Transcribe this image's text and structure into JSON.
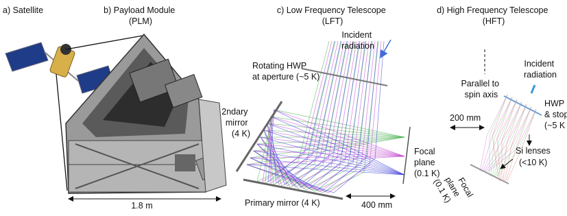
{
  "panels": [
    {
      "title": [
        "a) Satellite"
      ]
    },
    {
      "title": [
        "b) Payload Module",
        "(PLM)"
      ],
      "dimension": "1.8 m"
    },
    {
      "title": [
        "c) Low Frequency Telescope",
        "(LFT)"
      ],
      "incident": [
        "Incident",
        "radiation"
      ],
      "hwp": [
        "Rotating HWP",
        "at aperture (~5 K)"
      ],
      "secondary": [
        "2ndary",
        "mirror",
        "(4 K)"
      ],
      "focal": [
        "Focal",
        "plane",
        "(0.1 K)"
      ],
      "primary": "Primary mirror (4 K)",
      "scale": "400 mm"
    },
    {
      "title": [
        "d) High Frequency Telescope",
        "(HFT)"
      ],
      "spin": [
        "Parallel to",
        "spin axis"
      ],
      "incident": [
        "Incident",
        "radiation"
      ],
      "hwp": [
        "HWP",
        "& stop",
        "(~5 K"
      ],
      "scale": "200 mm",
      "lenses": [
        "Si lenses",
        "(<10 K)"
      ],
      "focal": [
        "Focal",
        "plane",
        "(0.1 K)"
      ]
    }
  ]
}
